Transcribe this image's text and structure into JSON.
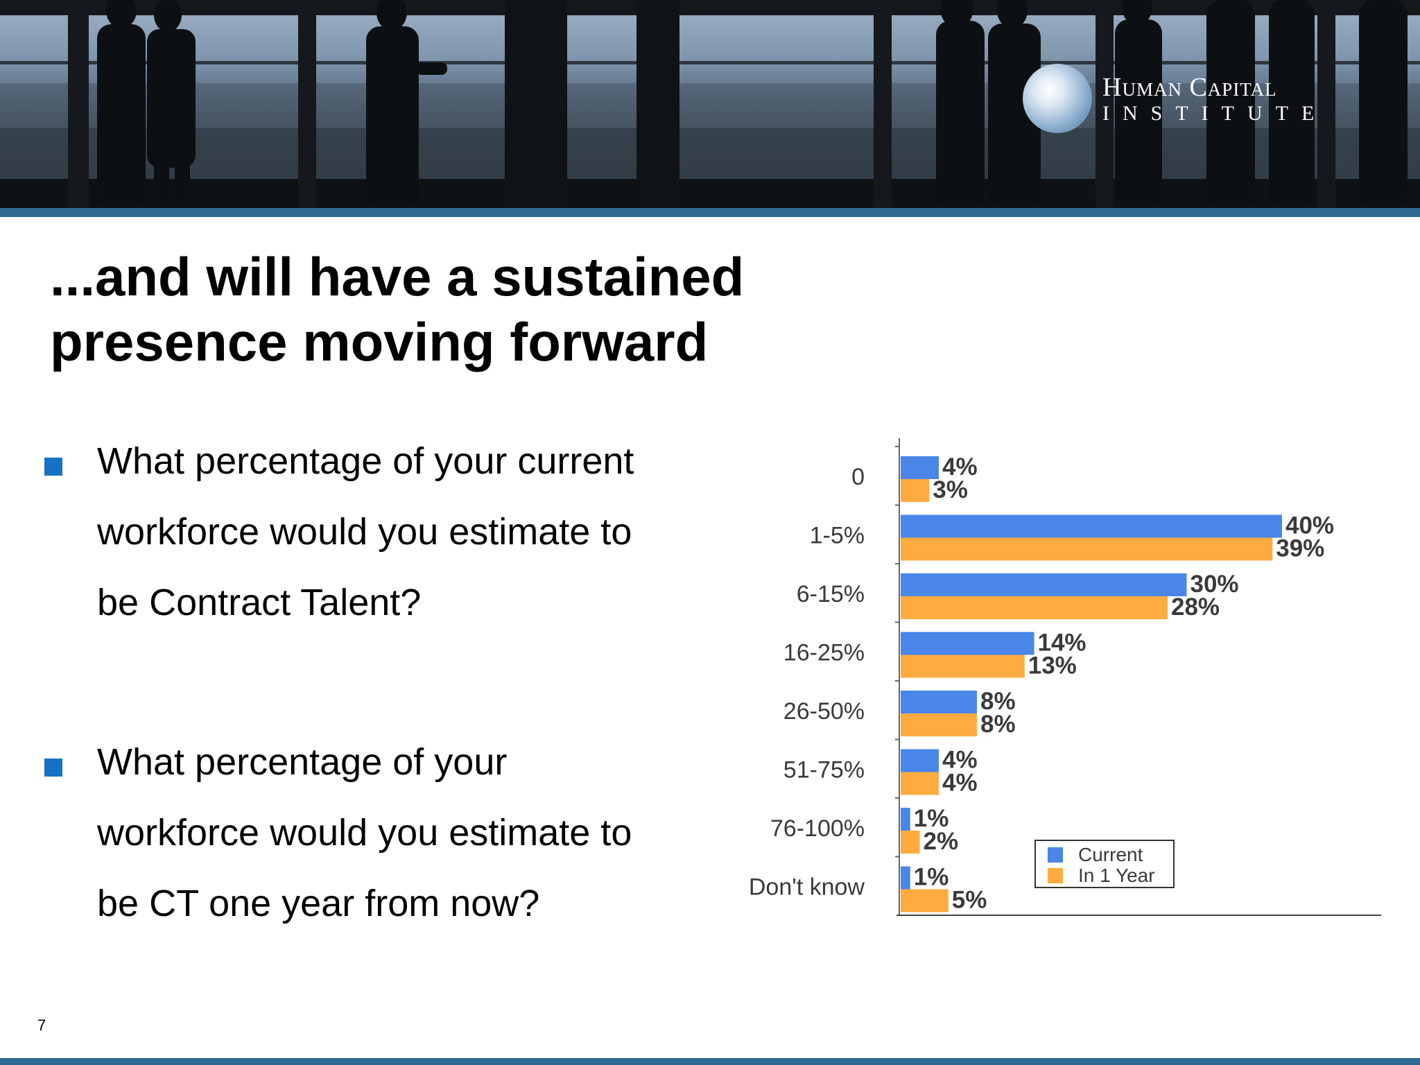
{
  "header": {
    "logo_line1": "Human Capital",
    "logo_line2": "INSTITUTE",
    "brand_color": "#2f6a92"
  },
  "slide": {
    "title_line1": "...and will have a sustained",
    "title_line2": "presence moving forward",
    "bullet_color": "#1672c4",
    "bullets": [
      {
        "line1": "What percentage of your current",
        "line2": "workforce would you estimate to",
        "line3": "be Contract Talent?"
      },
      {
        "line1": "What percentage of your",
        "line2": "workforce would you estimate to",
        "line3": "be CT one year from now?"
      }
    ],
    "page_number": "7"
  },
  "chart_data": {
    "type": "bar",
    "orientation": "horizontal",
    "categories": [
      "0",
      "1-5%",
      "6-15%",
      "16-25%",
      "26-50%",
      "51-75%",
      "76-100%",
      "Don't know"
    ],
    "series": [
      {
        "name": "Current",
        "color": "#4a86e8",
        "values": [
          4,
          40,
          30,
          14,
          8,
          4,
          1,
          1
        ],
        "labels": [
          "4%",
          "40%",
          "30%",
          "14%",
          "8%",
          "4%",
          "1%",
          "1%"
        ]
      },
      {
        "name": "In 1 Year",
        "color": "#ffab40",
        "values": [
          3,
          39,
          28,
          13,
          8,
          4,
          2,
          5
        ],
        "labels": [
          "3%",
          "39%",
          "28%",
          "13%",
          "8%",
          "4%",
          "2%",
          "5%"
        ]
      }
    ],
    "xlim": [
      0,
      50
    ],
    "grid": false,
    "legend_position": "bottom-right"
  }
}
